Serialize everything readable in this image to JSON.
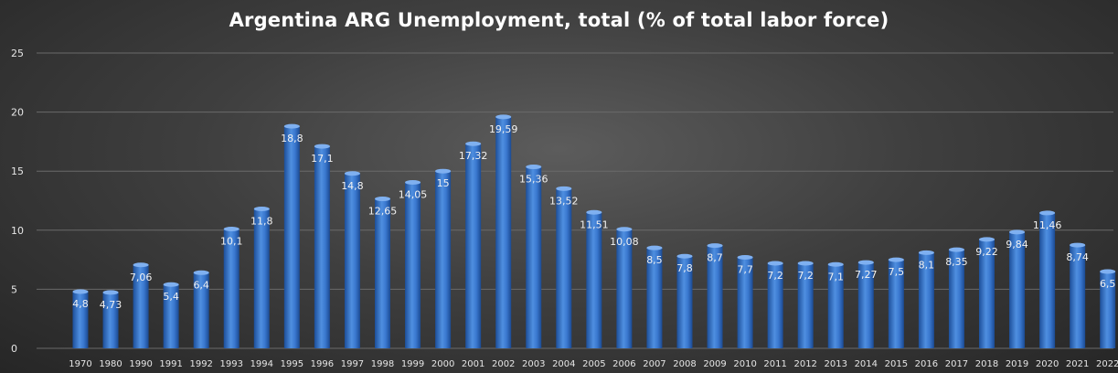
{
  "chart_data": {
    "type": "bar",
    "title": "Argentina ARG Unemployment, total (% of total labor force)",
    "xlabel": "",
    "ylabel": "",
    "ylim": [
      0,
      25
    ],
    "yticks": [
      0,
      5,
      10,
      15,
      20,
      25
    ],
    "grid": true,
    "legend": "none",
    "categories": [
      "1970",
      "1980",
      "1990",
      "1991",
      "1992",
      "1993",
      "1994",
      "1995",
      "1996",
      "1997",
      "1998",
      "1999",
      "2000",
      "2001",
      "2002",
      "2003",
      "2004",
      "2005",
      "2006",
      "2007",
      "2008",
      "2009",
      "2010",
      "2011",
      "2012",
      "2013",
      "2014",
      "2015",
      "2016",
      "2017",
      "2018",
      "2019",
      "2020",
      "2021",
      "2022"
    ],
    "values": [
      4.8,
      4.73,
      7.06,
      5.4,
      6.4,
      10.1,
      11.8,
      18.8,
      17.1,
      14.8,
      12.65,
      14.05,
      15,
      17.32,
      19.59,
      15.36,
      13.52,
      11.51,
      10.08,
      8.5,
      7.8,
      8.7,
      7.7,
      7.2,
      7.2,
      7.1,
      7.27,
      7.5,
      8.1,
      8.35,
      9.22,
      9.84,
      11.46,
      8.74,
      6.5
    ],
    "data_labels": [
      "4,8",
      "4,73",
      "7,06",
      "5,4",
      "6,4",
      "10,1",
      "11,8",
      "18,8",
      "17,1",
      "14,8",
      "12,65",
      "14,05",
      "15",
      "17,32",
      "19,59",
      "15,36",
      "13,52",
      "11,51",
      "10,08",
      "8,5",
      "7,8",
      "8,7",
      "7,7",
      "7,2",
      "7,2",
      "7,1",
      "7,27",
      "7,5",
      "8,1",
      "8,35",
      "9,22",
      "9,84",
      "11,46",
      "8,74",
      "6,5"
    ],
    "colors": {
      "bar": "#2f6fc8",
      "bar_light": "#7fb0f0",
      "bar_dark": "#1d4f9a",
      "background": "#3a3a3a",
      "text": "#ffffff"
    }
  }
}
